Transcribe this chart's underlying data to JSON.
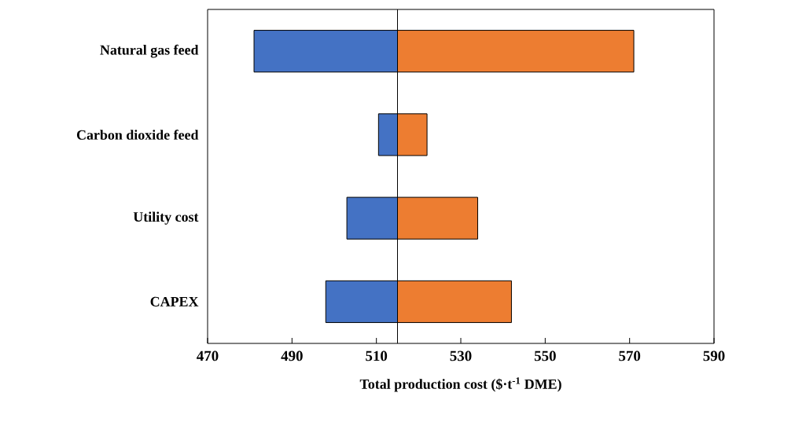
{
  "chart_data": {
    "type": "bar",
    "orientation": "horizontal",
    "xlabel": "Total production cost ($·t$^{-1}$ DME)",
    "categories": [
      "Natural gas feed",
      "Carbon dioxide feed",
      "Utility cost",
      "CAPEX"
    ],
    "series": [
      {
        "color": "#4472c4",
        "base": [
          481,
          510.5,
          503,
          498
        ],
        "values": [
          34,
          4.5,
          12,
          17
        ]
      },
      {
        "color": "#ed7d31",
        "base": [
          515,
          515,
          515,
          515
        ],
        "values": [
          56,
          7,
          19,
          27
        ]
      }
    ],
    "xlim": [
      470,
      590
    ],
    "xticks": [
      470,
      490,
      510,
      530,
      550,
      570,
      590
    ],
    "ref_lines": [
      {
        "axis": "x",
        "value": 515,
        "color": "#000000"
      }
    ]
  }
}
